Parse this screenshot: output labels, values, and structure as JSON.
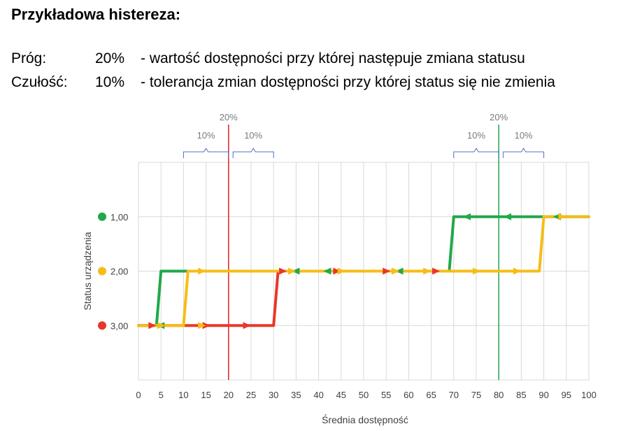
{
  "heading": "Przykładowa histereza:",
  "definitions": [
    {
      "label": "Próg:",
      "value": "20%",
      "desc": "- wartość dostępności przy której następuje zmiana statusu"
    },
    {
      "label": "Czułość:",
      "value": "10%",
      "desc": "- tolerancja zmian dostępności przy której status się nie zmienia"
    }
  ],
  "colors": {
    "red": "#e8372a",
    "yellow": "#f6bd16",
    "green": "#21a84b",
    "grid": "#d9d9d9",
    "brace": "#4a72c4",
    "threshold_red": "#e02020",
    "threshold_green": "#21a84b"
  },
  "chart_data": {
    "type": "line",
    "xlabel": "Średnia dostępność",
    "ylabel": "Status urządzenia",
    "xlim": [
      0,
      100
    ],
    "x_ticks": [
      "0",
      "5",
      "10",
      "15",
      "20",
      "25",
      "30",
      "35",
      "40",
      "45",
      "50",
      "55",
      "60",
      "65",
      "70",
      "75",
      "80",
      "85",
      "90",
      "95",
      "100"
    ],
    "y_ticks": [
      {
        "value": 1,
        "label": "1,00",
        "color": "#21a84b"
      },
      {
        "value": 2,
        "label": "2,00",
        "color": "#f6bd16"
      },
      {
        "value": 3,
        "label": "3,00",
        "color": "#e8372a"
      }
    ],
    "ylim": [
      4,
      0
    ],
    "thresholds": [
      {
        "x": 20,
        "label": "20%",
        "color": "#e02020"
      },
      {
        "x": 80,
        "label": "20%",
        "color": "#21a84b"
      }
    ],
    "tolerance_brackets": [
      {
        "from": 10,
        "to": 20,
        "label": "10%"
      },
      {
        "from": 21,
        "to": 30,
        "label": "10%"
      },
      {
        "from": 70,
        "to": 80,
        "label": "10%"
      },
      {
        "from": 81,
        "to": 90,
        "label": "10%"
      }
    ],
    "series": [
      {
        "color": "#e8372a",
        "points": [
          [
            0,
            3
          ],
          [
            30,
            3
          ],
          [
            31,
            2
          ],
          [
            70,
            2
          ]
        ],
        "arrows": [
          [
            3,
            3,
            "right"
          ],
          [
            15,
            3,
            "right"
          ],
          [
            24,
            3,
            "right"
          ],
          [
            32,
            2,
            "right"
          ],
          [
            44,
            2,
            "right"
          ],
          [
            55,
            2,
            "right"
          ],
          [
            66,
            2,
            "right"
          ]
        ]
      },
      {
        "color": "#21a84b",
        "points": [
          [
            100,
            1
          ],
          [
            70,
            1
          ],
          [
            69,
            2
          ],
          [
            5,
            2
          ],
          [
            4,
            3
          ],
          [
            0,
            3
          ]
        ],
        "arrows": [
          [
            93,
            1,
            "left"
          ],
          [
            82,
            1,
            "left"
          ],
          [
            73,
            1,
            "left"
          ],
          [
            35,
            2,
            "left"
          ],
          [
            58,
            2,
            "left"
          ],
          [
            42,
            2,
            "left"
          ],
          [
            5,
            3,
            "left"
          ]
        ]
      },
      {
        "color": "#f6bd16",
        "points": [
          [
            0,
            3
          ],
          [
            10,
            3
          ],
          [
            11,
            2
          ],
          [
            89,
            2
          ],
          [
            90,
            1
          ],
          [
            100,
            1
          ]
        ],
        "arrows": [
          [
            5,
            3,
            "right"
          ],
          [
            14,
            3,
            "right"
          ],
          [
            14,
            2,
            "right"
          ],
          [
            34,
            2,
            "right"
          ],
          [
            45,
            2,
            "right"
          ],
          [
            57,
            2,
            "right"
          ],
          [
            64,
            2,
            "right"
          ],
          [
            75,
            2,
            "right"
          ],
          [
            84,
            2,
            "right"
          ],
          [
            94,
            1,
            "right"
          ]
        ]
      }
    ]
  }
}
